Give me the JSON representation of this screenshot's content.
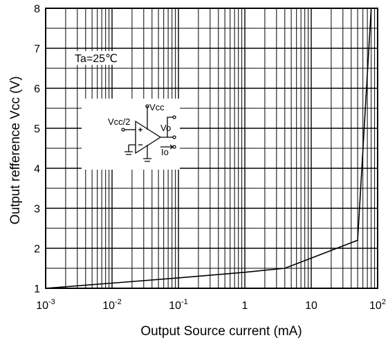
{
  "chart_data": {
    "type": "line",
    "title": "",
    "xlabel": "Output Source current  (mA)",
    "ylabel": "Output refference Vcc   (V)",
    "x_scale": "log",
    "xlim": [
      0.001,
      100
    ],
    "ylim": [
      1,
      8
    ],
    "grid": true,
    "x_ticks": [
      {
        "base": "10",
        "exp": "-3"
      },
      {
        "base": "10",
        "exp": "-2"
      },
      {
        "base": "10",
        "exp": "-1"
      },
      {
        "base": "1",
        "exp": ""
      },
      {
        "base": "10",
        "exp": ""
      },
      {
        "base": "10",
        "exp": "2"
      }
    ],
    "y_ticks": [
      "1",
      "2",
      "3",
      "4",
      "5",
      "6",
      "7",
      "8"
    ],
    "series": [
      {
        "x": [
          0.001,
          0.01,
          0.1,
          1,
          4,
          50,
          80
        ],
        "y": [
          1.0,
          1.13,
          1.26,
          1.4,
          1.5,
          2.2,
          8.0
        ]
      }
    ],
    "annotations": {
      "condition": "Ta=25℃",
      "circuit": {
        "vcc": "Vcc",
        "vref": "Vcc/2",
        "vo": "Vo",
        "io": "Io"
      }
    },
    "colors": {
      "line": "#000000",
      "grid": "#000000",
      "background": "#ffffff"
    }
  }
}
